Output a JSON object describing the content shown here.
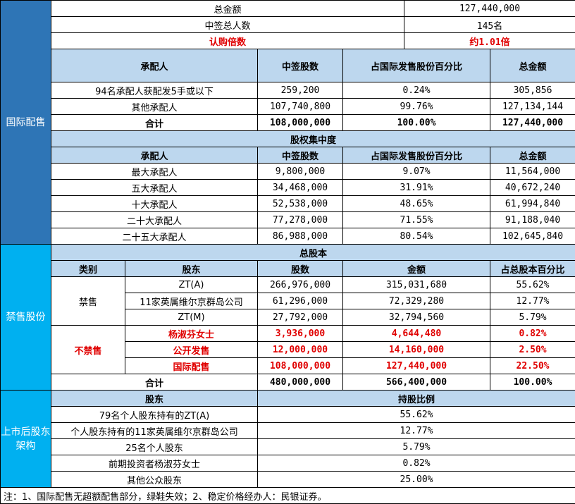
{
  "section1": {
    "side": "国际配售",
    "summary": [
      {
        "label": "总金额",
        "value": "127,440,000"
      },
      {
        "label": "中签总人数",
        "value": "145名"
      },
      {
        "label": "认购倍数",
        "value": "约1.01倍"
      }
    ],
    "headers": [
      "承配人",
      "中签股数",
      "占国际发售股份百分比",
      "总金额"
    ],
    "rows": [
      [
        "94名承配人获配发5手或以下",
        "259,200",
        "0.24%",
        "305,856"
      ],
      [
        "其他承配人",
        "107,740,800",
        "99.76%",
        "127,134,144"
      ]
    ],
    "total": [
      "合计",
      "108,000,000",
      "100.00%",
      "127,440,000"
    ],
    "conc_title": "股权集中度",
    "conc_headers": [
      "承配人",
      "中签股数",
      "占国际发售股份百分比",
      "总金额"
    ],
    "conc_rows": [
      [
        "最大承配人",
        "9,800,000",
        "9.07%",
        "11,564,000"
      ],
      [
        "五大承配人",
        "34,468,000",
        "31.91%",
        "40,672,240"
      ],
      [
        "十大承配人",
        "52,538,000",
        "48.65%",
        "61,994,840"
      ],
      [
        "二十大承配人",
        "77,278,000",
        "71.55%",
        "91,188,040"
      ],
      [
        "二十五大承配人",
        "86,988,000",
        "80.54%",
        "102,645,840"
      ]
    ]
  },
  "section2": {
    "side": "禁售股份",
    "title": "总股本",
    "headers": [
      "类别",
      "股东",
      "股数",
      "金额",
      "占总股本百分比"
    ],
    "cat_locked": "禁售",
    "cat_unlocked": "不禁售",
    "rows": [
      [
        "ZT(A)",
        "266,976,000",
        "315,031,680",
        "55.62%"
      ],
      [
        "11家英属维尔京群岛公司",
        "61,296,000",
        "72,329,280",
        "12.77%"
      ],
      [
        "ZT(M)",
        "27,792,000",
        "32,794,560",
        "5.79%"
      ],
      [
        "杨淑芬女士",
        "3,936,000",
        "4,644,480",
        "0.82%"
      ],
      [
        "公开发售",
        "12,000,000",
        "14,160,000",
        "2.50%"
      ],
      [
        "国际配售",
        "108,000,000",
        "127,440,000",
        "22.50%"
      ]
    ],
    "total": [
      "合计",
      "480,000,000",
      "566,400,000",
      "100.00%"
    ]
  },
  "section3": {
    "side": "上市后股东架构",
    "headers": [
      "股东",
      "持股比例"
    ],
    "rows": [
      [
        "79名个人股东持有的ZT(A)",
        "55.62%"
      ],
      [
        "个人股东持有的11家英属维尔京群岛公司",
        "12.77%"
      ],
      [
        "25名个人股东",
        "5.79%"
      ],
      [
        "前期投资者杨淑芬女士",
        "0.82%"
      ],
      [
        "其他公众股东",
        "25.00%"
      ]
    ]
  },
  "note": "注：1、国际配售无超额配售部分，绿鞋失效；2、稳定价格经办人：民银证券。",
  "colors": {
    "side_dark": "#2e75b6",
    "side_cyan": "#00b0f0",
    "header": "#bdd7ee",
    "highlight": "#e00000"
  }
}
